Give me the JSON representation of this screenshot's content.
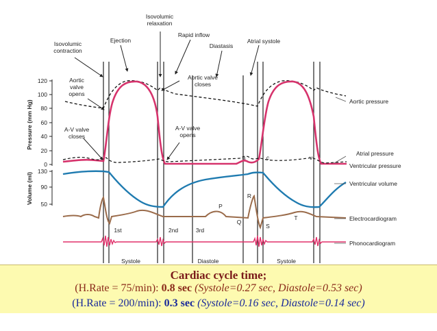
{
  "labels": {
    "isovolumic_relaxation": [
      "Isovolumic",
      "relaxation"
    ],
    "isovolumic_contraction": [
      "Isovolumic",
      "contraction"
    ],
    "ejection": "Ejection",
    "rapid_inflow": "Rapid inflow",
    "diastasis": "Diastasis",
    "atrial_systole": "Atrial systole",
    "aortic_valve_opens": [
      "Aortic",
      "valve",
      "opens"
    ],
    "aortic_valve_closes": [
      "Aortic valve",
      "closes"
    ],
    "av_valve_closes": [
      "A-V valve",
      "closes"
    ],
    "av_valve_opens": [
      "A-V valve",
      "opens"
    ],
    "aortic_pressure": "Aortic pressure",
    "atrial_pressure": "Atrial pressure",
    "ventricular_pressure": "Ventricular pressure",
    "ventricular_volume": "Ventricular volume",
    "electrocardiogram": "Electrocardiogram",
    "phonocardiogram": "Phonocardiogram",
    "ecg_waves": {
      "P": "P",
      "Q": "Q",
      "R": "R",
      "S": "S",
      "T": "T"
    },
    "pressure_waves": {
      "a": "a",
      "c": "c",
      "v": "v"
    },
    "heart_sounds": {
      "first": "1st",
      "second": "2nd",
      "third": "3rd"
    },
    "phases": {
      "systole_1": "Systole",
      "diastole": "Diastole",
      "systole_2": "Systole"
    }
  },
  "axes": {
    "pressure_title": "Pressure (mm Hg)",
    "volume_title": "Volume (ml)",
    "pressure_ticks": [
      "120",
      "100",
      "80",
      "60",
      "40",
      "20",
      "0"
    ],
    "volume_ticks": [
      "130",
      "90",
      "50"
    ]
  },
  "caption": {
    "title": "Cardiac cycle time;",
    "line1": {
      "open": "(H.Rate = 75/min): ",
      "value": "0.8 sec",
      "detail": " (Systole=0.27 sec, Diastole=0.53 sec)"
    },
    "line2": {
      "open": "(H.Rate = 200/min): ",
      "value": "0.3 sec",
      "detail": " (Systole=0.16 sec, Diastole=0.14 sec)"
    }
  },
  "colors": {
    "pressure": "#d6336c",
    "volume": "#1f7bb0",
    "ecg": "#9a6b4a",
    "phono": "#e0306a",
    "caption_bg": "#fdfab0"
  }
}
